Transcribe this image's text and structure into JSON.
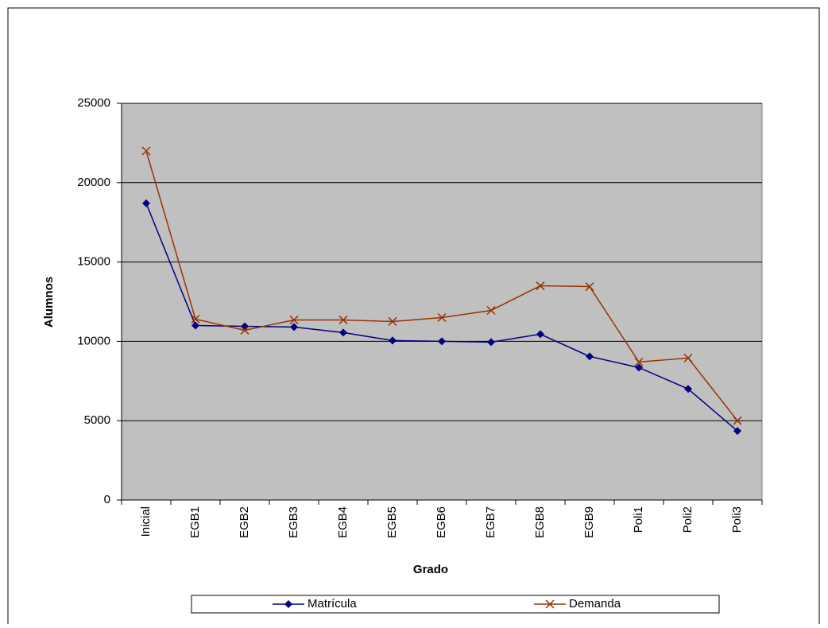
{
  "chart_data": {
    "type": "line",
    "x_label": "Grado",
    "y_label": "Alumnos",
    "categories": [
      "Inicial",
      "EGB1",
      "EGB2",
      "EGB3",
      "EGB4",
      "EGB5",
      "EGB6",
      "EGB7",
      "EGB8",
      "EGB9",
      "Poli1",
      "Poli2",
      "Poli3"
    ],
    "series": [
      {
        "name": "Matrícula",
        "color": "#000080",
        "marker": "diamond",
        "values": [
          18700,
          11000,
          10950,
          10900,
          10550,
          10050,
          10000,
          9950,
          10450,
          9050,
          8350,
          7000,
          4350
        ]
      },
      {
        "name": "Demanda",
        "color": "#993300",
        "marker": "x",
        "values": [
          22000,
          11400,
          10700,
          11350,
          11350,
          11250,
          11500,
          11950,
          13500,
          13450,
          8700,
          8950,
          5000
        ]
      }
    ],
    "ylim": [
      0,
      25000
    ],
    "yticks": [
      0,
      5000,
      10000,
      15000,
      20000,
      25000
    ],
    "grid": true,
    "legend": "bottom"
  }
}
